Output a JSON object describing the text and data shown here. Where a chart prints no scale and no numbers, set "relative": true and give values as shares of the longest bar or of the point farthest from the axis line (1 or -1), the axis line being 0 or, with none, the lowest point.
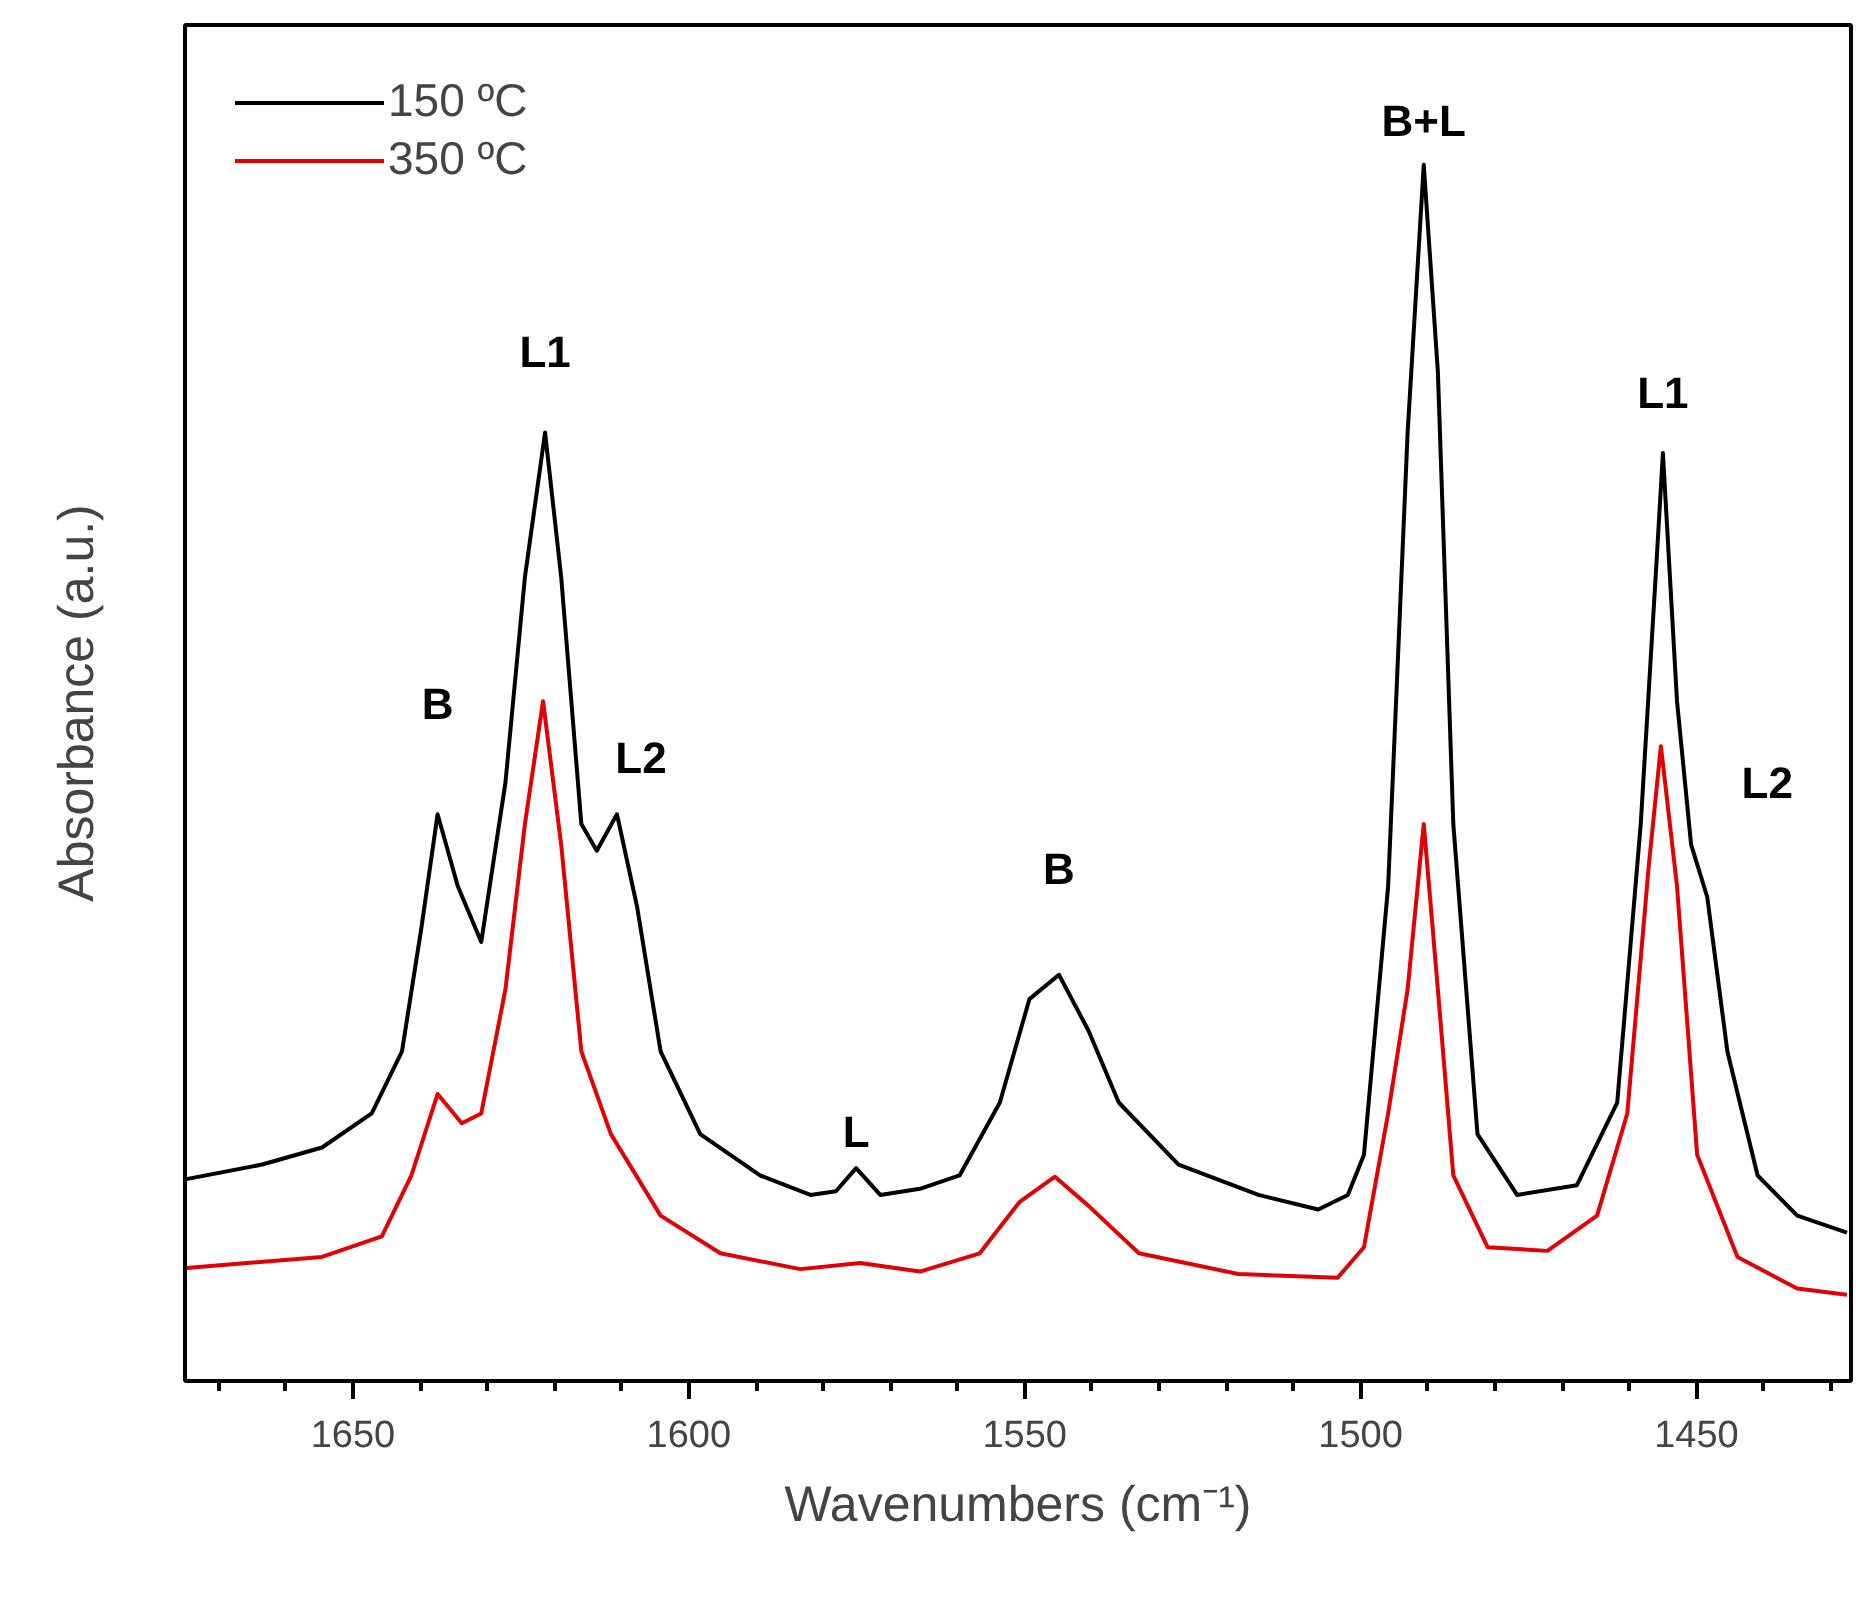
{
  "chart_data": {
    "type": "line",
    "relative": true,
    "xlabel": "Wavenumbers (cm⁻¹)",
    "ylabel": "Absorbance (a.u.)",
    "xlim": [
      1675,
      1427
    ],
    "xticks": [
      {
        "value": 1670,
        "label": null
      },
      {
        "value": 1660,
        "label": null
      },
      1650,
      {
        "value": 1640,
        "label": null
      },
      {
        "value": 1630,
        "label": null
      },
      {
        "value": 1620,
        "label": null
      },
      {
        "value": 1610,
        "label": null
      },
      1600,
      {
        "value": 1590,
        "label": null
      },
      {
        "value": 1580,
        "label": null
      },
      {
        "value": 1570,
        "label": null
      },
      {
        "value": 1560,
        "label": null
      },
      1550,
      {
        "value": 1540,
        "label": null
      },
      {
        "value": 1530,
        "label": null
      },
      {
        "value": 1520,
        "label": null
      },
      {
        "value": 1510,
        "label": null
      },
      1500,
      {
        "value": 1490,
        "label": null
      },
      {
        "value": 1480,
        "label": null
      },
      {
        "value": 1470,
        "label": null
      },
      {
        "value": 1460,
        "label": null
      },
      1450,
      {
        "value": 1440,
        "label": null
      },
      {
        "value": 1430,
        "label": null
      }
    ],
    "legend": "top left",
    "grid": false,
    "marker": "none",
    "line_style": "solid",
    "series": [
      {
        "name": "150 ºC",
        "color": "#000000",
        "x": [
          1674.8,
          1663.5,
          1654.6,
          1647.2,
          1642.7,
          1639.8,
          1637.4,
          1634.4,
          1630.9,
          1627.3,
          1624.4,
          1621.4,
          1619.0,
          1616.0,
          1613.7,
          1610.7,
          1607.7,
          1604.2,
          1598.3,
          1589.4,
          1581.9,
          1578.1,
          1575.1,
          1571.5,
          1565.6,
          1559.7,
          1553.7,
          1549.3,
          1544.9,
          1540.5,
          1536.0,
          1527.1,
          1515.2,
          1506.3,
          1501.9,
          1499.5,
          1495.9,
          1493.0,
          1490.6,
          1488.5,
          1486.2,
          1482.6,
          1476.7,
          1467.8,
          1461.8,
          1458.3,
          1455.9,
          1455.0,
          1452.9,
          1450.8,
          1448.4,
          1445.4,
          1440.9,
          1435.0,
          1427.6
        ],
        "values": [
          0.166,
          0.178,
          0.192,
          0.22,
          0.271,
          0.373,
          0.466,
          0.407,
          0.361,
          0.492,
          0.661,
          0.78,
          0.661,
          0.458,
          0.436,
          0.466,
          0.39,
          0.271,
          0.203,
          0.169,
          0.153,
          0.156,
          0.175,
          0.153,
          0.158,
          0.169,
          0.229,
          0.314,
          0.334,
          0.288,
          0.229,
          0.178,
          0.153,
          0.141,
          0.153,
          0.186,
          0.407,
          0.78,
          1.0,
          0.83,
          0.458,
          0.203,
          0.153,
          0.161,
          0.229,
          0.458,
          0.678,
          0.763,
          0.559,
          0.441,
          0.398,
          0.271,
          0.169,
          0.136,
          0.122
        ]
      },
      {
        "name": "350 ºC",
        "color": "#e00000",
        "x": [
          1674.8,
          1654.6,
          1645.7,
          1641.3,
          1637.4,
          1633.8,
          1630.9,
          1627.3,
          1624.4,
          1621.7,
          1619.0,
          1616.0,
          1611.6,
          1604.2,
          1595.3,
          1583.4,
          1574.5,
          1565.6,
          1556.7,
          1550.8,
          1545.5,
          1540.5,
          1533.0,
          1518.2,
          1503.4,
          1499.5,
          1495.9,
          1493.0,
          1490.6,
          1488.5,
          1486.2,
          1481.1,
          1472.2,
          1464.8,
          1460.3,
          1457.1,
          1455.3,
          1452.9,
          1449.9,
          1443.9,
          1435.0,
          1427.6
        ],
        "values": [
          0.093,
          0.102,
          0.119,
          0.169,
          0.236,
          0.212,
          0.22,
          0.322,
          0.458,
          0.559,
          0.441,
          0.271,
          0.203,
          0.136,
          0.105,
          0.092,
          0.097,
          0.09,
          0.105,
          0.147,
          0.168,
          0.144,
          0.105,
          0.088,
          0.085,
          0.11,
          0.22,
          0.322,
          0.458,
          0.322,
          0.169,
          0.11,
          0.107,
          0.136,
          0.22,
          0.424,
          0.522,
          0.407,
          0.186,
          0.102,
          0.076,
          0.071
        ]
      }
    ],
    "annotations": [
      {
        "text": "B",
        "x": 1637.4,
        "y": 0.466
      },
      {
        "text": "L1",
        "x": 1621.4,
        "y": 0.78
      },
      {
        "text": "L2",
        "x": 1610.7,
        "y": 0.466
      },
      {
        "text": "L",
        "x": 1575.1,
        "y": 0.175
      },
      {
        "text": "B",
        "x": 1544.9,
        "y": 0.334
      },
      {
        "text": "B+L",
        "x": 1490.6,
        "y": 1.0
      },
      {
        "text": "L1",
        "x": 1455.0,
        "y": 0.763
      },
      {
        "text": "L2",
        "x": 1448.4,
        "y": 0.398
      }
    ]
  }
}
